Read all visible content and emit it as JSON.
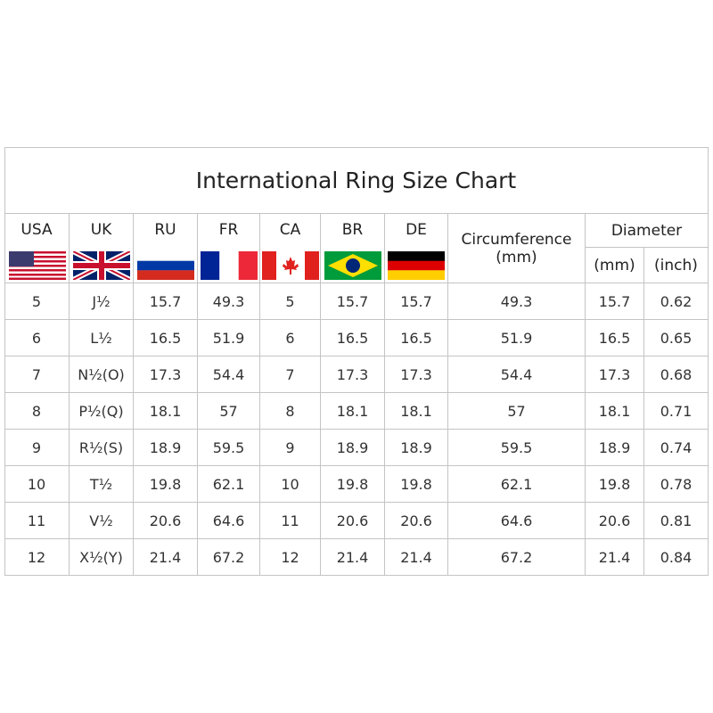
{
  "title": "International Ring Size Chart",
  "country_codes": [
    "USA",
    "UK",
    "RU",
    "FR",
    "CA",
    "BR",
    "DE"
  ],
  "circumference_label": "Circumference",
  "circumference_unit": "(mm)",
  "diameter_label": "Diameter",
  "diameter_units": [
    "(mm)",
    "(inch)"
  ],
  "table": {
    "rows": [
      [
        5,
        "J½",
        15.7,
        49.3,
        5,
        15.7,
        15.7,
        49.3,
        15.7,
        0.62
      ],
      [
        6,
        "L½",
        16.5,
        51.9,
        6,
        16.5,
        16.5,
        51.9,
        16.5,
        0.65
      ],
      [
        7,
        "N½(O)",
        17.3,
        54.4,
        7,
        17.3,
        17.3,
        54.4,
        17.3,
        0.68
      ],
      [
        8,
        "P½(Q)",
        18.1,
        57,
        8,
        18.1,
        18.1,
        57,
        18.1,
        0.71
      ],
      [
        9,
        "R½(S)",
        18.9,
        59.5,
        9,
        18.9,
        18.9,
        59.5,
        18.9,
        0.74
      ],
      [
        10,
        "T½",
        19.8,
        62.1,
        10,
        19.8,
        19.8,
        62.1,
        19.8,
        0.78
      ],
      [
        11,
        "V½",
        20.6,
        64.6,
        11,
        20.6,
        20.6,
        64.6,
        20.6,
        0.81
      ],
      [
        12,
        "X½(Y)",
        21.4,
        67.2,
        12,
        21.4,
        21.4,
        67.2,
        21.4,
        0.84
      ]
    ]
  }
}
